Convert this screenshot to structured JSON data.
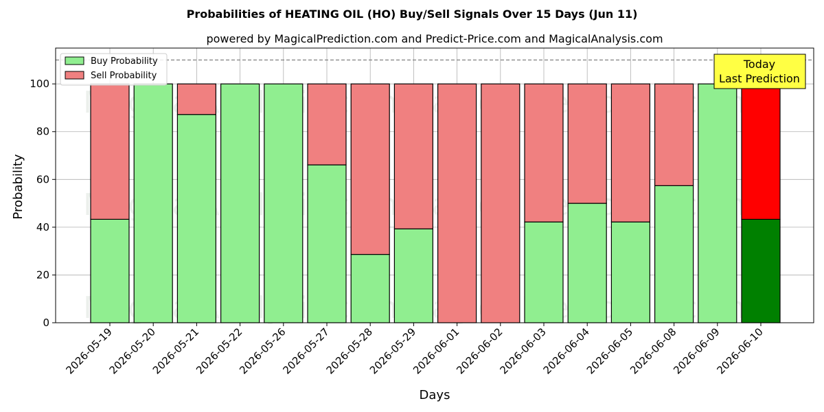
{
  "chart_data": {
    "type": "bar",
    "stacked": true,
    "title": "Probabilities of HEATING OIL (HO) Buy/Sell Signals Over 15 Days (Jun 11)",
    "subtitle": "powered by MagicalPrediction.com and Predict-Price.com and MagicalAnalysis.com",
    "xlabel": "Days",
    "ylabel": "Probability",
    "ylim": [
      0,
      115
    ],
    "yticks": [
      0,
      20,
      40,
      60,
      80,
      100
    ],
    "reference_line": 110,
    "grid": true,
    "legend_position": "top-left",
    "categories": [
      "2026-05-19",
      "2026-05-20",
      "2026-05-21",
      "2026-05-22",
      "2026-05-26",
      "2026-05-27",
      "2026-05-28",
      "2026-05-29",
      "2026-06-01",
      "2026-06-02",
      "2026-06-03",
      "2026-06-04",
      "2026-06-05",
      "2026-06-08",
      "2026-06-09",
      "2026-06-10"
    ],
    "series": [
      {
        "name": "Buy Probability",
        "color": "#90ee90",
        "highlight_color": "#008000",
        "values": [
          43.3,
          100,
          87.2,
          100,
          100,
          66.1,
          28.6,
          39.3,
          0,
          0,
          42.2,
          50.0,
          42.2,
          57.4,
          100,
          43.3
        ]
      },
      {
        "name": "Sell Probability",
        "color": "#f08080",
        "highlight_color": "#ff0000",
        "values": [
          56.7,
          0,
          12.8,
          0,
          0,
          33.9,
          71.4,
          60.7,
          100,
          100,
          57.8,
          50.0,
          57.8,
          42.6,
          0,
          56.7
        ]
      }
    ],
    "highlight_index": 15,
    "annotation": {
      "lines": [
        "Today",
        "Last Prediction"
      ],
      "color": "#ffff44"
    },
    "watermarks": [
      "MagicalAnalysis.com",
      "MagicalPrediction.com"
    ]
  }
}
